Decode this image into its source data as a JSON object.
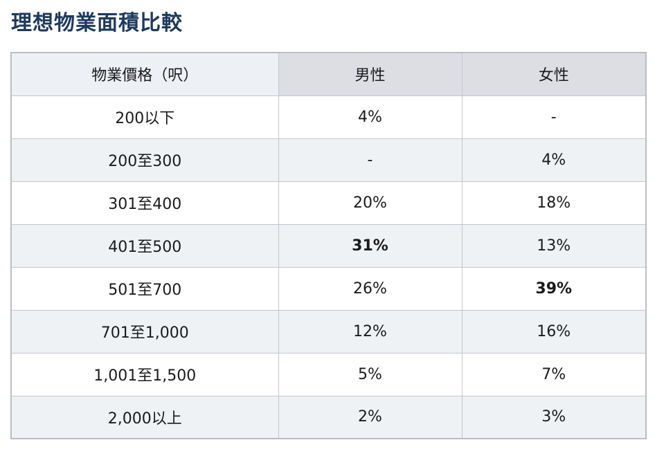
{
  "title": "理想物業面積比較",
  "table": {
    "headers": [
      "物業價格（呎）",
      "男性",
      "女性"
    ],
    "rows": [
      {
        "range": "200以下",
        "male": "4%",
        "female": "-"
      },
      {
        "range": "200至300",
        "male": "-",
        "female": "4%"
      },
      {
        "range": "301至400",
        "male": "20%",
        "female": "18%"
      },
      {
        "range": "401至500",
        "male": "31%",
        "female": "13%",
        "bold": "male"
      },
      {
        "range": "501至700",
        "male": "26%",
        "female": "39%",
        "bold": "female"
      },
      {
        "range": "701至1,000",
        "male": "12%",
        "female": "16%"
      },
      {
        "range": "1,001至1,500",
        "male": "5%",
        "female": "7%"
      },
      {
        "range": "2,000以上",
        "male": "2%",
        "female": "3%"
      }
    ]
  }
}
